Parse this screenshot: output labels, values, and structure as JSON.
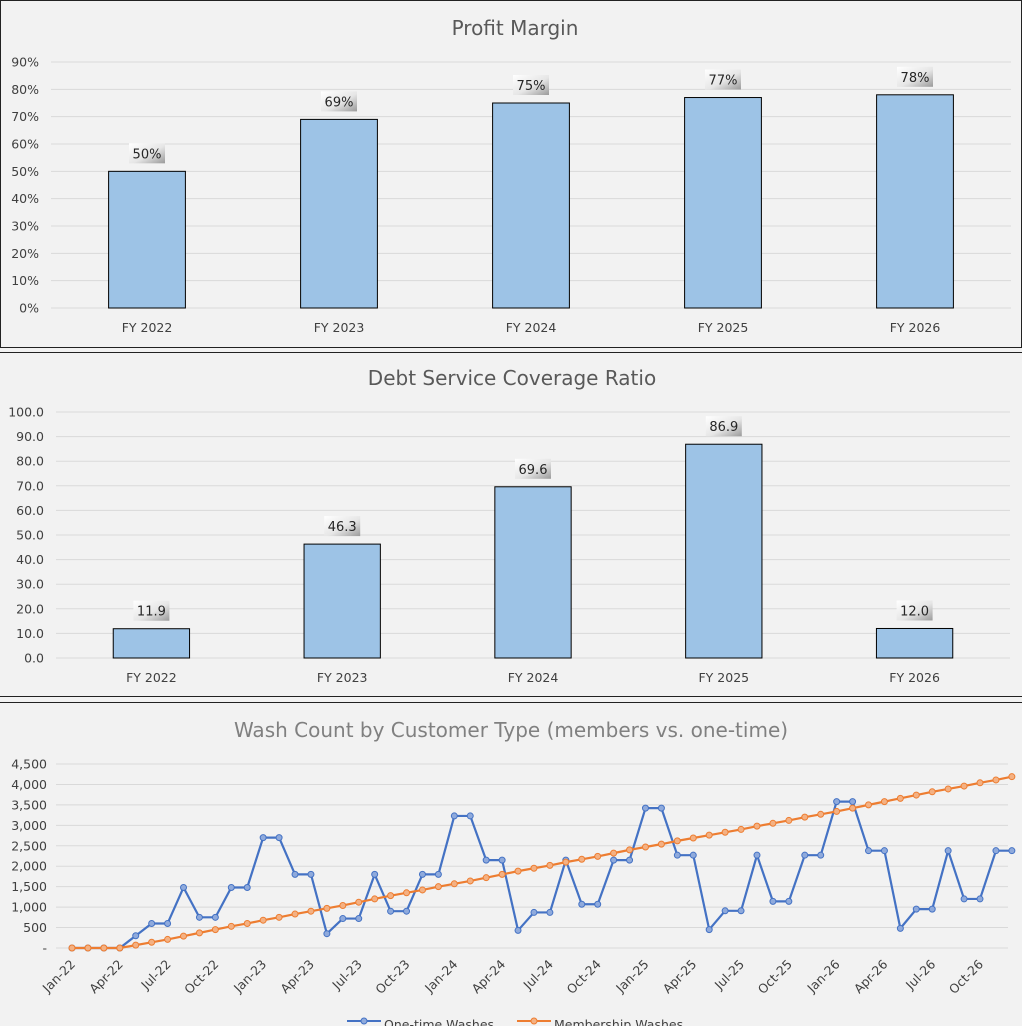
{
  "chart_data": [
    {
      "type": "bar",
      "title": "Profit Margin",
      "categories": [
        "FY 2022",
        "FY 2023",
        "FY 2024",
        "FY 2025",
        "FY 2026"
      ],
      "values": [
        50,
        69,
        75,
        77,
        78
      ],
      "data_labels": [
        "50%",
        "69%",
        "75%",
        "77%",
        "78%"
      ],
      "yticks": [
        "0%",
        "10%",
        "20%",
        "30%",
        "40%",
        "50%",
        "60%",
        "70%",
        "80%",
        "90%"
      ],
      "ylim": [
        0,
        90
      ],
      "bar_color": "#9dc3e6",
      "grid": true
    },
    {
      "type": "bar",
      "title": "Debt Service Coverage Ratio",
      "categories": [
        "FY 2022",
        "FY 2023",
        "FY 2024",
        "FY 2025",
        "FY 2026"
      ],
      "values": [
        11.9,
        46.3,
        69.6,
        86.9,
        12.0
      ],
      "data_labels": [
        "11.9",
        "46.3",
        "69.6",
        "86.9",
        "12.0"
      ],
      "yticks": [
        "0.0",
        "10.0",
        "20.0",
        "30.0",
        "40.0",
        "50.0",
        "60.0",
        "70.0",
        "80.0",
        "90.0",
        "100.0"
      ],
      "ylim": [
        0,
        100
      ],
      "bar_color": "#9dc3e6",
      "grid": true
    },
    {
      "type": "line",
      "title": "Wash Count by Customer Type (members vs. one-time)",
      "x_tick_labels": [
        "Jan-22",
        "Apr-22",
        "Jul-22",
        "Oct-22",
        "Jan-23",
        "Apr-23",
        "Jul-23",
        "Oct-23",
        "Jan-24",
        "Apr-24",
        "Jul-24",
        "Oct-24",
        "Jan-25",
        "Apr-25",
        "Jul-25",
        "Oct-25",
        "Jan-26",
        "Apr-26",
        "Jul-26",
        "Oct-26"
      ],
      "yticks": [
        "-",
        "500",
        "1,000",
        "1,500",
        "2,000",
        "2,500",
        "3,000",
        "3,500",
        "4,000",
        "4,500"
      ],
      "ylim": [
        0,
        4500
      ],
      "series": [
        {
          "name": "One-time Washes",
          "color": "#4472c4",
          "values": [
            0,
            0,
            0,
            0,
            300,
            600,
            600,
            1480,
            750,
            750,
            1480,
            1480,
            2700,
            2700,
            1800,
            1800,
            350,
            720,
            720,
            1800,
            900,
            900,
            1800,
            1800,
            3230,
            3230,
            2150,
            2150,
            430,
            870,
            870,
            2150,
            1070,
            1070,
            2150,
            2150,
            3420,
            3420,
            2270,
            2270,
            450,
            910,
            910,
            2270,
            1140,
            1140,
            2270,
            2270,
            3580,
            3580,
            2380,
            2380,
            480,
            950,
            950,
            2380,
            1200,
            1200,
            2380,
            2380
          ]
        },
        {
          "name": "Membership Washes",
          "color": "#ed7d31",
          "values": [
            0,
            0,
            0,
            0,
            70,
            140,
            210,
            290,
            370,
            450,
            530,
            600,
            680,
            750,
            830,
            900,
            970,
            1040,
            1120,
            1200,
            1280,
            1350,
            1420,
            1500,
            1570,
            1640,
            1720,
            1800,
            1880,
            1950,
            2020,
            2100,
            2170,
            2240,
            2320,
            2400,
            2470,
            2540,
            2620,
            2690,
            2760,
            2830,
            2900,
            2980,
            3050,
            3120,
            3200,
            3270,
            3340,
            3420,
            3500,
            3580,
            3660,
            3740,
            3820,
            3890,
            3960,
            4040,
            4110,
            4190
          ]
        }
      ]
    }
  ]
}
